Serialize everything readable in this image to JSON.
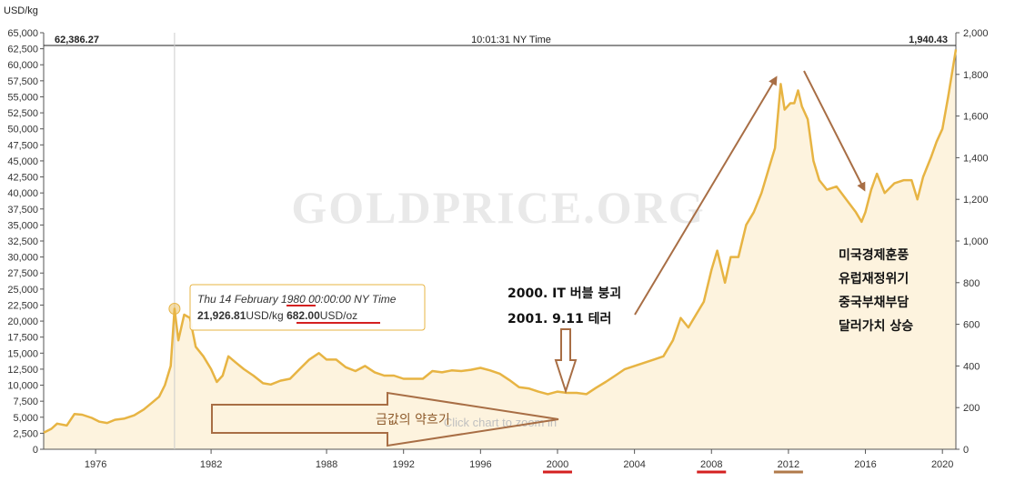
{
  "header": {
    "unit_label": "USD/kg",
    "left_value": "62,386.27",
    "time": "10:01:31 NY Time",
    "right_value": "1,940.43"
  },
  "watermark": "GOLDPRICE.ORG",
  "zoom_hint": "Click chart to zoom in",
  "tooltip": {
    "date_prefix": "Thu 14 February ",
    "date_year": "1980",
    "date_suffix": " 00:00:00 NY Time",
    "kg_value": "21,926.81",
    "kg_unit": "USD/kg",
    "oz_value": "682.00",
    "oz_unit": "USD/oz"
  },
  "annotations": {
    "it_bubble": "2000. IT 버블 붕괴",
    "terror": "2001. 9.11 테러",
    "weak_period": "금값의 약흐기",
    "factors": [
      "미국경제훈풍",
      "유럽재정위기",
      "중국부채부담",
      "달러가치 상승"
    ]
  },
  "colors": {
    "line": "#e7b443",
    "fill": "#fdf3de",
    "arrow": "#a86e45",
    "underline_red": "#d42020",
    "underline_brown": "#b07a4a"
  },
  "chart_data": {
    "type": "area",
    "title": "",
    "xlabel": "",
    "ylabel_left": "USD/kg",
    "ylabel_right": "",
    "xlim": [
      1973.3,
      2020.7
    ],
    "ylim_left": [
      0,
      65000
    ],
    "ylim_right": [
      0,
      2000
    ],
    "grid": false,
    "x_ticks": [
      1976,
      1982,
      1988,
      1992,
      1996,
      2000,
      2004,
      2008,
      2012,
      2016,
      2020
    ],
    "y_ticks_left": [
      0,
      2500,
      5000,
      7500,
      10000,
      12500,
      15000,
      17500,
      20000,
      22500,
      25000,
      27500,
      30000,
      32500,
      35000,
      37500,
      40000,
      42500,
      45000,
      47500,
      50000,
      52500,
      55000,
      57500,
      60000,
      62500,
      65000
    ],
    "y_ticks_right": [
      0,
      200,
      400,
      600,
      800,
      1000,
      1200,
      1400,
      1600,
      1800,
      2000
    ],
    "underlined_ticks": [
      2000,
      2008,
      2012
    ],
    "series": [
      {
        "x": [
          1973.3,
          1973.7,
          1974.0,
          1974.5,
          1974.9,
          1975.3,
          1975.8,
          1976.2,
          1976.6,
          1977.0,
          1977.5,
          1978.0,
          1978.5,
          1978.9,
          1979.3,
          1979.6,
          1979.9,
          1980.1,
          1980.3,
          1980.6,
          1980.9,
          1981.2,
          1981.6,
          1982.0,
          1982.3,
          1982.6,
          1982.9,
          1983.3,
          1983.7,
          1984.2,
          1984.7,
          1985.1,
          1985.6,
          1986.1,
          1986.6,
          1987.1,
          1987.6,
          1988.0,
          1988.5,
          1989.0,
          1989.5,
          1990.0,
          1990.5,
          1991.0,
          1991.5,
          1992.0,
          1992.5,
          1993.0,
          1993.5,
          1994.0,
          1994.5,
          1995.0,
          1995.5,
          1996.0,
          1996.5,
          1997.0,
          1997.5,
          1998.0,
          1998.5,
          1999.0,
          1999.5,
          2000.0,
          2000.5,
          2001.0,
          2001.5,
          2002.0,
          2002.5,
          2003.0,
          2003.5,
          2004.0,
          2004.5,
          2005.0,
          2005.5,
          2006.0,
          2006.4,
          2006.8,
          2007.2,
          2007.6,
          2008.0,
          2008.3,
          2008.7,
          2009.0,
          2009.4,
          2009.8,
          2010.2,
          2010.6,
          2011.0,
          2011.3,
          2011.6,
          2011.8,
          2012.1,
          2012.3,
          2012.5,
          2012.7,
          2013.0,
          2013.3,
          2013.6,
          2014.0,
          2014.5,
          2015.0,
          2015.5,
          2015.8,
          2016.0,
          2016.3,
          2016.6,
          2017.0,
          2017.5,
          2018.0,
          2018.4,
          2018.7,
          2019.0,
          2019.4,
          2019.7,
          2020.0,
          2020.3,
          2020.7
        ],
        "y": [
          2600,
          3200,
          4000,
          3700,
          5500,
          5400,
          4900,
          4300,
          4100,
          4600,
          4800,
          5300,
          6200,
          7200,
          8200,
          10000,
          13000,
          21926,
          17000,
          21000,
          20500,
          16000,
          14500,
          12500,
          10500,
          11500,
          14500,
          13500,
          12500,
          11500,
          10300,
          10100,
          10700,
          11000,
          12500,
          14000,
          15000,
          14000,
          14000,
          12800,
          12200,
          13000,
          12000,
          11500,
          11500,
          11000,
          11000,
          11000,
          12200,
          12000,
          12300,
          12200,
          12400,
          12700,
          12300,
          11800,
          10800,
          9700,
          9500,
          9000,
          8600,
          9000,
          8800,
          8800,
          8600,
          9600,
          10500,
          11500,
          12500,
          13000,
          13500,
          14000,
          14500,
          17000,
          20500,
          19000,
          21000,
          23000,
          28000,
          31000,
          26000,
          30000,
          30000,
          35000,
          37000,
          40000,
          44000,
          47000,
          57000,
          53000,
          54000,
          54000,
          56000,
          53500,
          51500,
          45000,
          42000,
          40500,
          41000,
          39000,
          37000,
          35500,
          37000,
          40500,
          43000,
          40000,
          41500,
          42000,
          42000,
          39000,
          42500,
          45500,
          48000,
          50000,
          55000,
          62386
        ]
      }
    ]
  }
}
